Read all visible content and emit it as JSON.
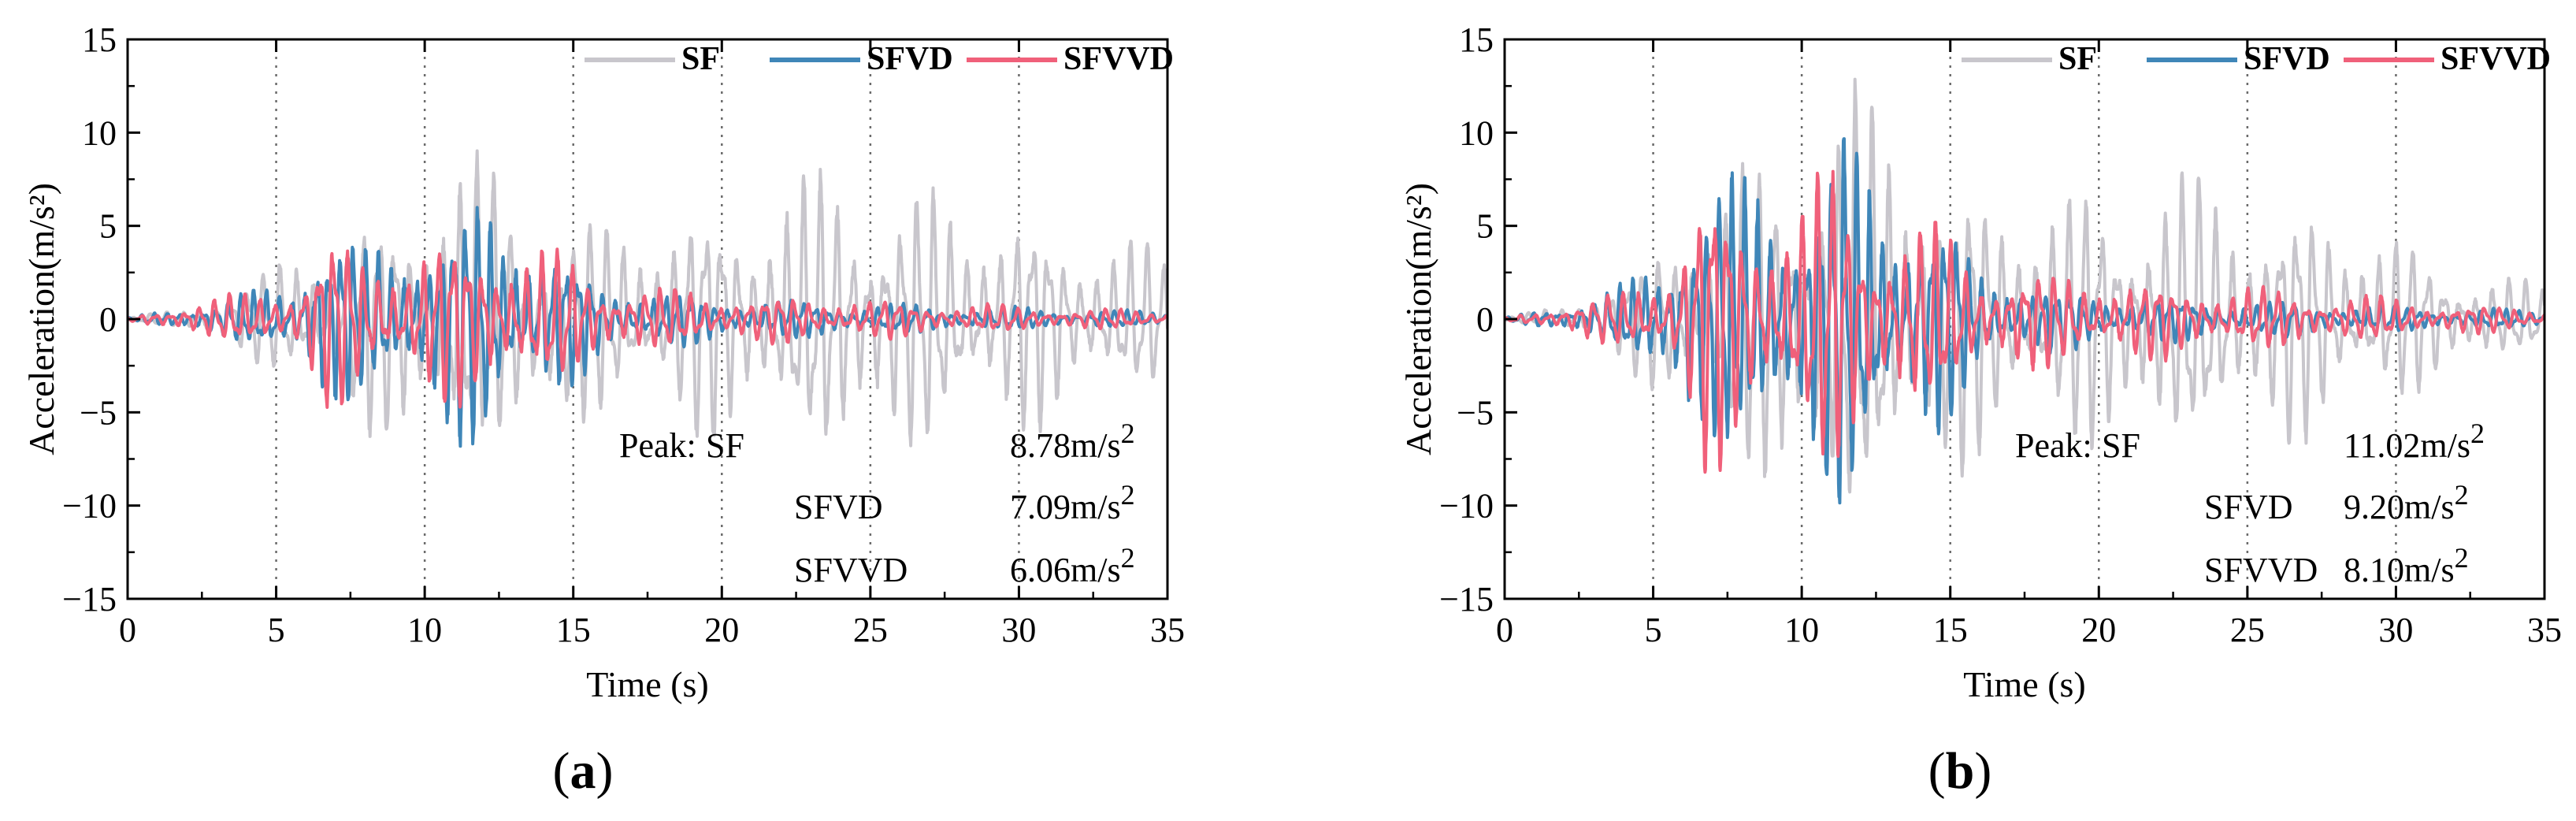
{
  "figure": {
    "panels": [
      {
        "id": "a",
        "letter": "a"
      },
      {
        "id": "b",
        "letter": "b"
      }
    ]
  },
  "chart_data": [
    {
      "type": "line",
      "panel_label": "a",
      "xlabel": "Time (s)",
      "ylabel": "Acceleration(m/s²)",
      "xlim": [
        0,
        35
      ],
      "ylim": [
        -15,
        15
      ],
      "xticks": [
        0,
        5,
        10,
        15,
        20,
        25,
        30,
        35
      ],
      "yticks": [
        -15,
        -10,
        -5,
        0,
        5,
        10,
        15
      ],
      "vertical_dotted_lines": [
        5,
        10,
        15,
        20,
        25,
        30
      ],
      "legend": {
        "position": "top-right",
        "entries": [
          "SF",
          "SFVD",
          "SFVVD"
        ]
      },
      "series": [
        {
          "name": "SF",
          "color": "#c8c6cc",
          "envelope": [
            [
              0,
              0.05
            ],
            [
              2,
              0.5
            ],
            [
              4,
              1.8
            ],
            [
              6,
              3.5
            ],
            [
              8,
              4.8
            ],
            [
              10,
              6.2
            ],
            [
              11,
              7.6
            ],
            [
              12,
              6.8
            ],
            [
              14,
              5.5
            ],
            [
              16,
              4.5
            ],
            [
              18,
              4.8
            ],
            [
              20,
              5.5
            ],
            [
              22,
              6.0
            ],
            [
              24,
              6.8
            ],
            [
              26,
              6.2
            ],
            [
              28,
              5.6
            ],
            [
              30,
              5.0
            ],
            [
              32,
              4.2
            ],
            [
              34,
              3.5
            ],
            [
              35,
              3.2
            ]
          ],
          "period": 0.55
        },
        {
          "name": "SFVD",
          "color": "#3f86b8",
          "envelope": [
            [
              0,
              0.05
            ],
            [
              2,
              0.6
            ],
            [
              4,
              1.2
            ],
            [
              5.5,
              1.8
            ],
            [
              6.5,
              5.0
            ],
            [
              8,
              3.2
            ],
            [
              10,
              4.5
            ],
            [
              12,
              6.0
            ],
            [
              14,
              3.8
            ],
            [
              16,
              1.8
            ],
            [
              18,
              1.3
            ],
            [
              20,
              1.0
            ],
            [
              24,
              0.8
            ],
            [
              28,
              0.6
            ],
            [
              32,
              0.45
            ],
            [
              35,
              0.35
            ]
          ],
          "period": 0.42
        },
        {
          "name": "SFVVD",
          "color": "#f0607a",
          "envelope": [
            [
              0,
              0.05
            ],
            [
              2,
              0.8
            ],
            [
              4,
              1.2
            ],
            [
              5.5,
              1.6
            ],
            [
              6.8,
              4.2
            ],
            [
              8,
              3.0
            ],
            [
              10,
              3.5
            ],
            [
              12,
              4.0
            ],
            [
              14,
              3.2
            ],
            [
              16,
              2.0
            ],
            [
              18,
              1.4
            ],
            [
              20,
              1.2
            ],
            [
              24,
              1.0
            ],
            [
              28,
              0.7
            ],
            [
              32,
              0.5
            ],
            [
              35,
              0.4
            ]
          ],
          "period": 0.5
        }
      ],
      "annotations": {
        "peak_title": "Peak:",
        "rows": [
          {
            "name": "SF",
            "value": "8.78m/s",
            "exponent": "2"
          },
          {
            "name": "SFVD",
            "value": "7.09m/s",
            "exponent": "2"
          },
          {
            "name": "SFVVD",
            "value": "6.06m/s",
            "exponent": "2"
          }
        ]
      }
    },
    {
      "type": "line",
      "panel_label": "b",
      "xlabel": "Time (s)",
      "ylabel": "Acceleration(m/s²)",
      "xlim": [
        0,
        35
      ],
      "ylim": [
        -15,
        15
      ],
      "xticks": [
        0,
        5,
        10,
        15,
        20,
        25,
        30,
        35
      ],
      "yticks": [
        -15,
        -10,
        -5,
        0,
        5,
        10,
        15
      ],
      "vertical_dotted_lines": [
        5,
        10,
        15,
        20,
        25,
        30
      ],
      "legend": {
        "position": "top-right",
        "entries": [
          "SF",
          "SFVD",
          "SFVVD"
        ]
      },
      "series": [
        {
          "name": "SF",
          "color": "#c8c6cc",
          "envelope": [
            [
              0,
              0.05
            ],
            [
              2,
              0.6
            ],
            [
              4,
              2.0
            ],
            [
              6,
              4.5
            ],
            [
              8,
              7.0
            ],
            [
              10,
              8.5
            ],
            [
              11.5,
              10.5
            ],
            [
              13,
              9.0
            ],
            [
              14.5,
              8.0
            ],
            [
              16,
              6.0
            ],
            [
              18,
              5.5
            ],
            [
              20,
              6.0
            ],
            [
              22,
              6.5
            ],
            [
              24,
              6.2
            ],
            [
              26,
              5.6
            ],
            [
              28,
              5.0
            ],
            [
              30,
              3.8
            ],
            [
              32,
              2.6
            ],
            [
              34,
              1.8
            ],
            [
              35,
              1.5
            ]
          ],
          "period": 0.55
        },
        {
          "name": "SFVD",
          "color": "#3f86b8",
          "envelope": [
            [
              0,
              0.05
            ],
            [
              2,
              0.7
            ],
            [
              4,
              1.5
            ],
            [
              5.5,
              3.0
            ],
            [
              6,
              7.5
            ],
            [
              8,
              6.0
            ],
            [
              10,
              7.2
            ],
            [
              11.5,
              8.8
            ],
            [
              13,
              6.5
            ],
            [
              14.5,
              5.5
            ],
            [
              16,
              2.5
            ],
            [
              18,
              1.6
            ],
            [
              20,
              1.2
            ],
            [
              24,
              0.9
            ],
            [
              28,
              0.7
            ],
            [
              32,
              0.5
            ],
            [
              35,
              0.4
            ]
          ],
          "period": 0.42
        },
        {
          "name": "SFVVD",
          "color": "#f0607a",
          "envelope": [
            [
              0,
              0.05
            ],
            [
              2,
              0.7
            ],
            [
              4,
              1.3
            ],
            [
              5.5,
              2.5
            ],
            [
              6.8,
              7.0
            ],
            [
              8,
              5.0
            ],
            [
              10,
              6.0
            ],
            [
              11,
              7.2
            ],
            [
              12.5,
              5.0
            ],
            [
              14,
              4.5
            ],
            [
              16,
              2.8
            ],
            [
              18,
              2.2
            ],
            [
              20,
              2.0
            ],
            [
              24,
              1.6
            ],
            [
              28,
              1.2
            ],
            [
              32,
              0.7
            ],
            [
              35,
              0.5
            ]
          ],
          "period": 0.5
        }
      ],
      "annotations": {
        "peak_title": "Peak:",
        "rows": [
          {
            "name": "SF",
            "value": "11.02m/s",
            "exponent": "2"
          },
          {
            "name": "SFVD",
            "value": "9.20m/s",
            "exponent": "2"
          },
          {
            "name": "SFVVD",
            "value": "8.10m/s",
            "exponent": "2"
          }
        ]
      }
    }
  ]
}
